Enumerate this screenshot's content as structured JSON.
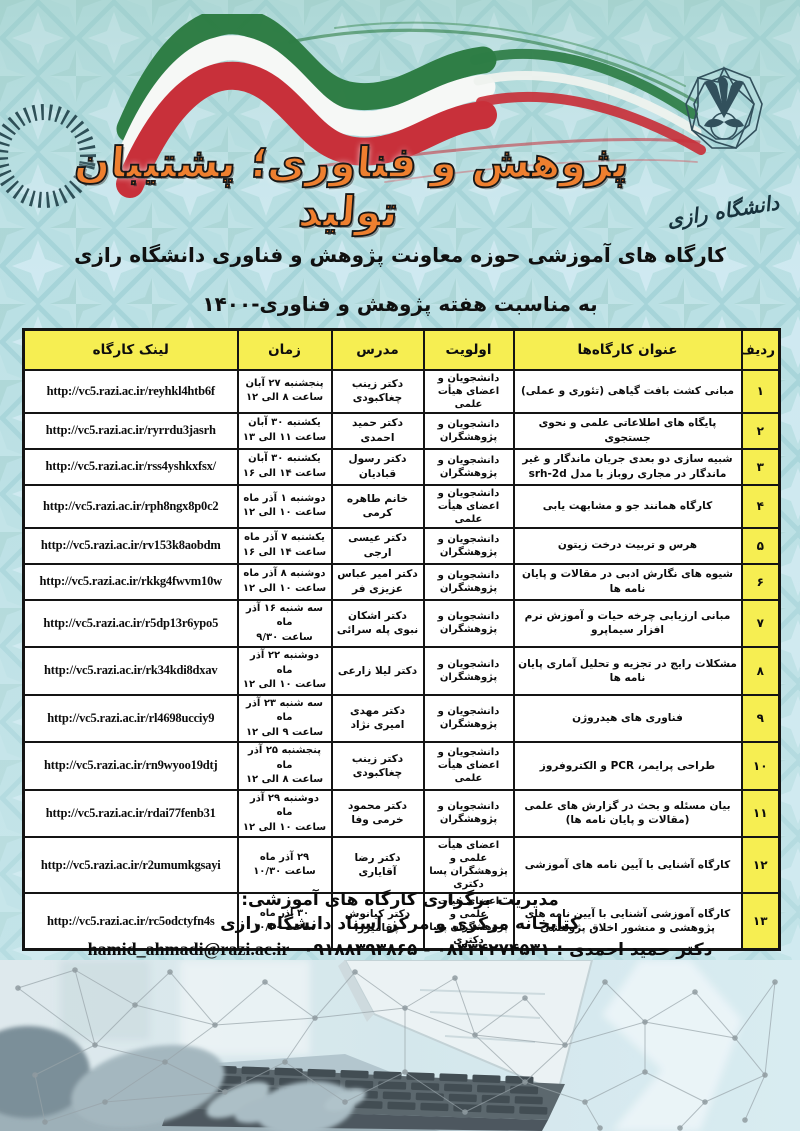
{
  "header": {
    "title": "پژوهش و فناوری؛ پشتیبان تولید",
    "subtitle_line1": "کارگاه های آموزشی حوزه معاونت پژوهش و فناوری دانشگاه رازی",
    "subtitle_line2": "به مناسبت هفته پژوهش و فناوری-۱۴۰۰",
    "logo_caption": "دانشگاه رازی"
  },
  "table": {
    "columns": {
      "row": "ردیف",
      "title": "عنوان کارگاه‌ها",
      "priority": "اولویت",
      "instructor": "مدرس",
      "time": "زمان",
      "link": "لینک کارگاه"
    },
    "rows": [
      {
        "row": "۱",
        "title": "مبانی کشت بافت گیاهی (تئوری و عملی)",
        "priority": "دانشجویان و اعضای هیأت علمی",
        "instructor": "دکتر زینب چغاکبودی",
        "time": [
          "پنجشنبه ۲۷ آبان",
          "ساعت ۸ الی ۱۲"
        ],
        "link": "http://vc5.razi.ac.ir/reyhkl4htb6f"
      },
      {
        "row": "۲",
        "title": "پایگاه های اطلاعاتی علمی و نحوی جستجوی",
        "priority": "دانشجویان و پژوهشگران",
        "instructor": "دکتر حمید احمدی",
        "time": [
          "یکشنبه ۳۰ آبان",
          "ساعت ۱۱ الی ۱۳"
        ],
        "link": "http://vc5.razi.ac.ir/ryrrdu3jasrh"
      },
      {
        "row": "۳",
        "title": "شبیه سازی دو بعدی جریان ماندگار و غیر ماندگار در مجاری روباز با مدل srh-2d",
        "priority": "دانشجویان و پژوهشگران",
        "instructor": "دکتر رسول قبادیان",
        "time": [
          "یکشنبه ۳۰ آبان",
          "ساعت ۱۴ الی ۱۶"
        ],
        "link": "http://vc5.razi.ac.ir/rss4yshkxfsx/"
      },
      {
        "row": "۴",
        "title": "کارگاه همانند جو و مشابهت یابی",
        "priority": "دانشجویان و اعضای هیأت علمی",
        "instructor": "خانم طاهره کرمی",
        "time": [
          "دوشنبه ۱ آذر ماه",
          "ساعت ۱۰ الی ۱۲"
        ],
        "link": "http://vc5.razi.ac.ir/rph8ngx8p0c2"
      },
      {
        "row": "۵",
        "title": "هرس و تربیت درخت زیتون",
        "priority": "دانشجویان و پژوهشگران",
        "instructor": "دکتر عیسی ارجی",
        "time": [
          "یکشنبه ۷ آذر ماه",
          "ساعت ۱۴ الی ۱۶"
        ],
        "link": "http://vc5.razi.ac.ir/rv153k8aobdm"
      },
      {
        "row": "۶",
        "title": "شیوه های نگارش ادبی در مقالات و پایان نامه ها",
        "priority": "دانشجویان و پژوهشگران",
        "instructor": "دکتر امیر عباس عزیزی فر",
        "time": [
          "دوشنبه ۸ آذر ماه",
          "ساعت ۱۰ الی ۱۲"
        ],
        "link": "http://vc5.razi.ac.ir/rkkg4fwvm10w"
      },
      {
        "row": "۷",
        "title": "مبانی ارزیابی چرخه حیات و آموزش نرم افزار سیماپرو",
        "priority": "دانشجویان و پژوهشگران",
        "instructor": "دکتر اشکان نبوی پله سرائی",
        "time": [
          "سه شنبه ۱۶ آذر ماه",
          "ساعت ۹/۳۰"
        ],
        "link": "http://vc5.razi.ac.ir/r5dp13r6ypo5"
      },
      {
        "row": "۸",
        "title": "مشکلات رایج در تجزیه و تحلیل آماری پایان نامه ها",
        "priority": "دانشجویان و پژوهشگران",
        "instructor": "دکتر لیلا زارعی",
        "time": [
          "دوشنبه ۲۲ آذر ماه",
          "ساعت ۱۰ الی ۱۲"
        ],
        "link": "http://vc5.razi.ac.ir/rk34kdi8dxav"
      },
      {
        "row": "۹",
        "title": "فناوری های هیدروژن",
        "priority": "دانشجویان و پژوهشگران",
        "instructor": "دکتر مهدی امیری نژاد",
        "time": [
          "سه شنبه ۲۳ آذر ماه",
          "ساعت ۹ الی ۱۲"
        ],
        "link": "http://vc5.razi.ac.ir/rl4698ucciy9"
      },
      {
        "row": "۱۰",
        "title": "طراحی پرایمر، PCR و الکتروفروز",
        "priority": "دانشجویان و اعضای هیأت علمی",
        "instructor": "دکتر زینب چغاکبودی",
        "time": [
          "پنجشنبه ۲۵ آذر ماه",
          "ساعت ۸ الی ۱۲"
        ],
        "link": "http://vc5.razi.ac.ir/rn9wyoo19dtj"
      },
      {
        "row": "۱۱",
        "title": "بیان مسئله و بحث در گزارش های علمی (مقالات و پایان نامه ها)",
        "priority": "دانشجویان و پژوهشگران",
        "instructor": "دکتر محمود خرمی وفا",
        "time": [
          "دوشنبه ۲۹ آذر ماه",
          "ساعت ۱۰ الی ۱۲"
        ],
        "link": "http://vc5.razi.ac.ir/rdai77fenb31"
      },
      {
        "row": "۱۲",
        "title": "کارگاه آشنایی با آیین نامه های آموزشی",
        "priority": "اعضای هیأت علمی و پژوهشگران پسا دکتری",
        "instructor": "دکتر رضا آقایاری",
        "time": [
          "۲۹ آذر ماه",
          "ساعت ۱۰/۳۰"
        ],
        "link": "http://vc5.razi.ac.ir/r2umumkgsayi"
      },
      {
        "row": "۱۳",
        "title": "کارگاه آموزشی آشنایی با آیین نامه های پژوهشی و منشور اخلاق پژوهشی",
        "priority": "اعضای هیأت علمی و پژوهشگران پسا دکتری",
        "instructor": "دکتر کیانوش چقامیرزا",
        "time": [
          "۳۰ آذر ماه",
          "ساعت ۱۰/۳۰"
        ],
        "link": "http://vc5.razi.ac.ir/rc5odctyfn4s"
      }
    ]
  },
  "footer": {
    "line1": "مدیریت برگزاری کارگاه های آموزشی:",
    "line2": "کتابخانه مرکزی و مرکز اسناد دانشگاه رازی",
    "contact_fa": "دکتر حمید احمدی : ۰۸۳۳۴۲۷۴۵۳۱ - ۰۹۱۸۸۳۹۳۸۶۵",
    "contact_email": "hamid_ahmadi@razi.ac.ir"
  },
  "colors": {
    "accent_orange": "#ee7f2f",
    "header_yellow": "#f6ee52",
    "background_teal": "#b7dde2",
    "table_border": "#141414",
    "flag_green": "#2a7a3f",
    "flag_red": "#c8303a"
  }
}
